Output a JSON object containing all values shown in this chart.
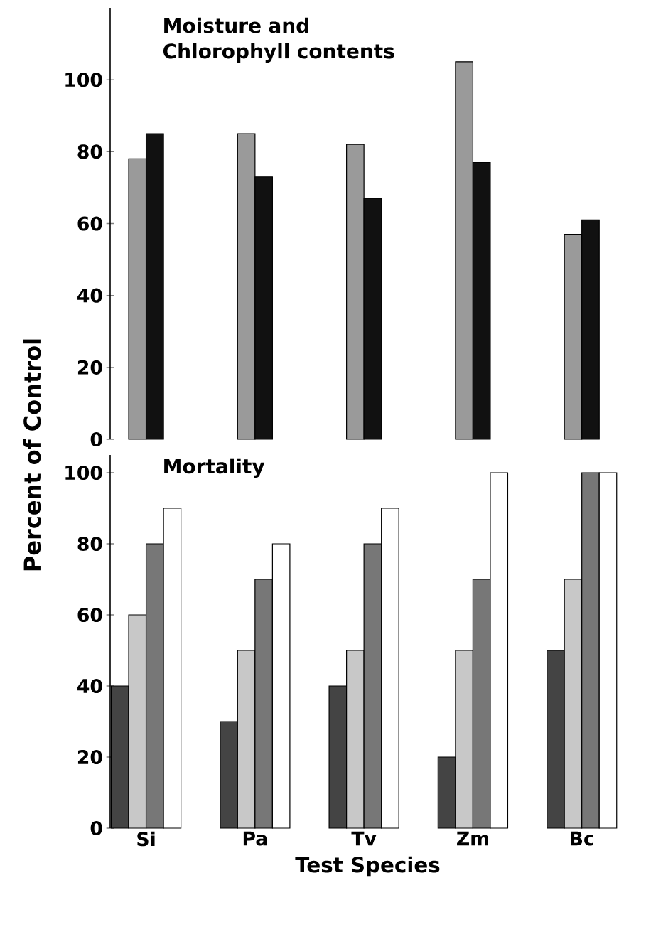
{
  "chart_data": [
    {
      "type": "bar",
      "title": "Moisture and Chlorophyll contents",
      "ylabel": "Percent of Control",
      "categories": [
        null,
        null,
        null,
        null,
        null
      ],
      "series": [
        {
          "color": "#9a9a9a",
          "values": [
            78,
            85,
            82,
            105,
            57
          ]
        },
        {
          "color": "#111111",
          "values": [
            85,
            73,
            67,
            77,
            61
          ]
        }
      ],
      "ylim": [
        0,
        120
      ],
      "yticks": [
        0,
        20,
        40,
        60,
        80,
        100
      ],
      "tick_labels": "y"
    },
    {
      "type": "bar",
      "title": "Mortality",
      "xlabel": "Test Species",
      "categories": [
        "Si",
        "Pa",
        "Tv",
        "Zm",
        "Bc"
      ],
      "series": [
        {
          "color": "#444444",
          "values": [
            40,
            30,
            40,
            20,
            50
          ]
        },
        {
          "color": "#c8c8c8",
          "values": [
            60,
            50,
            50,
            50,
            70
          ]
        },
        {
          "color": "#777777",
          "values": [
            80,
            70,
            80,
            70,
            100
          ]
        },
        {
          "color": "#ffffff",
          "values": [
            90,
            80,
            90,
            100,
            100
          ]
        }
      ],
      "ylim": [
        0,
        105
      ],
      "yticks": [
        0,
        20,
        40,
        60,
        80,
        100
      ]
    }
  ]
}
